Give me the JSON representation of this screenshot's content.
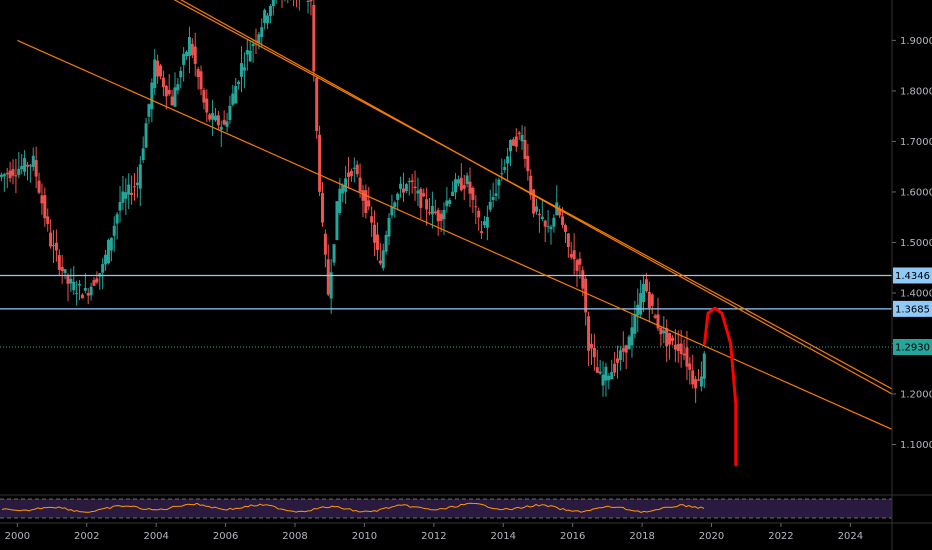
{
  "colors": {
    "background": "#000000",
    "up": "#26a69a",
    "down": "#ef5350",
    "trendline": "#f57c00",
    "hline": "#90caf9",
    "annotation": "#ff0000",
    "current": "#26a69a",
    "oscillator": "#ff9800",
    "oscillator_band": "#2a1a40"
  },
  "chart_data": {
    "type": "candlestick",
    "title": "",
    "xlabel": "",
    "ylabel": "",
    "x_range": [
      1999.5,
      2025.2
    ],
    "y_range": [
      1.0,
      1.98
    ],
    "x_ticks": [
      "2000",
      "2002",
      "2004",
      "2006",
      "2008",
      "2010",
      "2012",
      "2014",
      "2016",
      "2018",
      "2020",
      "2022",
      "2024"
    ],
    "y_ticks": [
      "1.1000",
      "1.2000",
      "1.3000",
      "1.4000",
      "1.5000",
      "1.6000",
      "1.7000",
      "1.8000",
      "1.9000"
    ],
    "price_labels": [
      {
        "text": "1.4346",
        "value": 1.4346,
        "kind": "hline"
      },
      {
        "text": "1.3685",
        "value": 1.3685,
        "kind": "hline"
      },
      {
        "text": "1.2930",
        "value": 1.293,
        "kind": "current"
      }
    ],
    "anchors": [
      [
        1999.5,
        1.63
      ],
      [
        2000.5,
        1.66
      ],
      [
        2001.0,
        1.5
      ],
      [
        2001.5,
        1.42
      ],
      [
        2002.0,
        1.4
      ],
      [
        2002.5,
        1.45
      ],
      [
        2003.0,
        1.58
      ],
      [
        2003.5,
        1.62
      ],
      [
        2004.0,
        1.85
      ],
      [
        2004.5,
        1.78
      ],
      [
        2005.0,
        1.9
      ],
      [
        2005.5,
        1.75
      ],
      [
        2006.0,
        1.73
      ],
      [
        2006.5,
        1.85
      ],
      [
        2007.0,
        1.92
      ],
      [
        2007.5,
        2.0
      ],
      [
        2008.5,
        1.98
      ],
      [
        2008.6,
        1.8
      ],
      [
        2008.8,
        1.55
      ],
      [
        2009.0,
        1.4
      ],
      [
        2009.3,
        1.6
      ],
      [
        2009.7,
        1.65
      ],
      [
        2010.2,
        1.55
      ],
      [
        2010.5,
        1.45
      ],
      [
        2010.8,
        1.58
      ],
      [
        2011.3,
        1.62
      ],
      [
        2011.7,
        1.58
      ],
      [
        2012.2,
        1.55
      ],
      [
        2012.6,
        1.61
      ],
      [
        2013.0,
        1.62
      ],
      [
        2013.4,
        1.52
      ],
      [
        2013.8,
        1.6
      ],
      [
        2014.3,
        1.7
      ],
      [
        2014.6,
        1.71
      ],
      [
        2014.9,
        1.57
      ],
      [
        2015.3,
        1.52
      ],
      [
        2015.6,
        1.57
      ],
      [
        2015.9,
        1.49
      ],
      [
        2016.3,
        1.44
      ],
      [
        2016.5,
        1.3
      ],
      [
        2016.8,
        1.23
      ],
      [
        2017.2,
        1.25
      ],
      [
        2017.7,
        1.31
      ],
      [
        2018.1,
        1.42
      ],
      [
        2018.4,
        1.35
      ],
      [
        2018.8,
        1.3
      ],
      [
        2019.2,
        1.29
      ],
      [
        2019.5,
        1.23
      ],
      [
        2019.7,
        1.22
      ],
      [
        2019.85,
        1.293
      ]
    ],
    "trendlines": [
      {
        "from": [
          2000.0,
          1.9
        ],
        "to": [
          2025.2,
          1.13
        ]
      },
      {
        "from": [
          2004.0,
          2.0
        ],
        "to": [
          2025.2,
          1.21
        ]
      },
      {
        "from": [
          2004.2,
          2.0
        ],
        "to": [
          2025.2,
          1.2
        ]
      }
    ],
    "hlines": [
      1.4346,
      1.3685
    ],
    "current_price": 1.293,
    "annotation_path": [
      [
        2019.8,
        1.3
      ],
      [
        2019.9,
        1.36
      ],
      [
        2020.1,
        1.37
      ],
      [
        2020.3,
        1.36
      ],
      [
        2020.55,
        1.3
      ],
      [
        2020.7,
        1.18
      ],
      [
        2020.7,
        1.06
      ]
    ]
  }
}
